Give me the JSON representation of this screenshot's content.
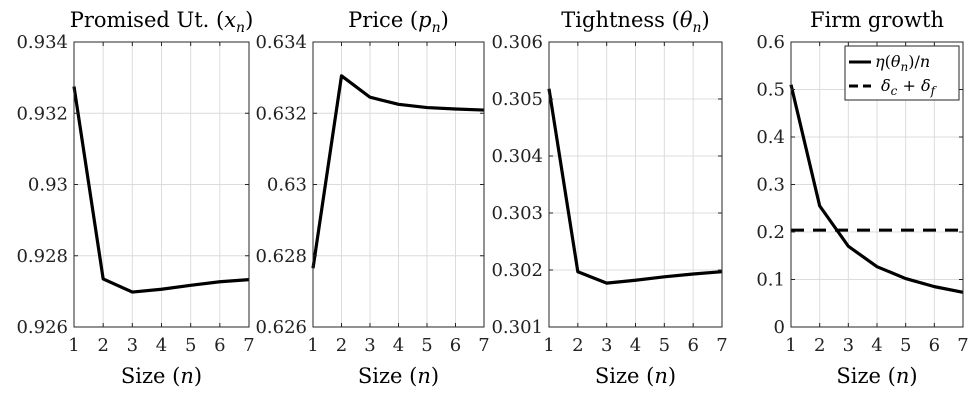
{
  "chart_data": [
    {
      "type": "line",
      "title": "Promised Ut. (x_n)",
      "title_parts": {
        "main": "Promised Ut. (",
        "var": "x",
        "sub": "n",
        "close": ")"
      },
      "xlabel": "Size (n)",
      "xlabel_parts": {
        "main": "Size (",
        "var": "n",
        "close": ")"
      },
      "x": [
        1,
        2,
        3,
        4,
        5,
        6,
        7
      ],
      "xlim": [
        1,
        7
      ],
      "xticks": [
        1,
        2,
        3,
        4,
        5,
        6,
        7
      ],
      "ylim": [
        0.926,
        0.934
      ],
      "yticks": [
        0.926,
        0.928,
        0.93,
        0.932,
        0.934
      ],
      "ytick_labels": [
        "0.926",
        "0.928",
        "0.93",
        "0.932",
        "0.934"
      ],
      "grid": true,
      "series": [
        {
          "values": [
            0.93275,
            0.92735,
            0.92698,
            0.92706,
            0.92717,
            0.92727,
            0.92733
          ],
          "style": "solid"
        }
      ]
    },
    {
      "type": "line",
      "title": "Price (p_n)",
      "title_parts": {
        "main": "Price (",
        "var": "p",
        "sub": "n",
        "close": ")"
      },
      "xlabel": "Size (n)",
      "xlabel_parts": {
        "main": "Size (",
        "var": "n",
        "close": ")"
      },
      "x": [
        1,
        2,
        3,
        4,
        5,
        6,
        7
      ],
      "xlim": [
        1,
        7
      ],
      "xticks": [
        1,
        2,
        3,
        4,
        5,
        6,
        7
      ],
      "ylim": [
        0.626,
        0.634
      ],
      "yticks": [
        0.626,
        0.628,
        0.63,
        0.632,
        0.634
      ],
      "ytick_labels": [
        "0.626",
        "0.628",
        "0.63",
        "0.632",
        "0.634"
      ],
      "grid": true,
      "series": [
        {
          "values": [
            0.62765,
            0.63305,
            0.63245,
            0.63225,
            0.63216,
            0.63212,
            0.63209
          ],
          "style": "solid"
        }
      ]
    },
    {
      "type": "line",
      "title": "Tightness (θ_n)",
      "title_parts": {
        "main": "Tightness (",
        "var": "θ",
        "sub": "n",
        "close": ")"
      },
      "xlabel": "Size (n)",
      "xlabel_parts": {
        "main": "Size (",
        "var": "n",
        "close": ")"
      },
      "x": [
        1,
        2,
        3,
        4,
        5,
        6,
        7
      ],
      "xlim": [
        1,
        7
      ],
      "xticks": [
        1,
        2,
        3,
        4,
        5,
        6,
        7
      ],
      "ylim": [
        0.301,
        0.306
      ],
      "yticks": [
        0.301,
        0.302,
        0.303,
        0.304,
        0.305,
        0.306
      ],
      "ytick_labels": [
        "0.301",
        "0.302",
        "0.303",
        "0.304",
        "0.305",
        "0.306"
      ],
      "grid": true,
      "series": [
        {
          "values": [
            0.30518,
            0.30197,
            0.30177,
            0.30182,
            0.30188,
            0.30193,
            0.30197
          ],
          "style": "solid"
        }
      ]
    },
    {
      "type": "line",
      "title": "Firm growth",
      "title_parts": {
        "main": "Firm growth",
        "var": "",
        "sub": "",
        "close": ""
      },
      "xlabel": "Size (n)",
      "xlabel_parts": {
        "main": "Size (",
        "var": "n",
        "close": ")"
      },
      "x": [
        1,
        2,
        3,
        4,
        5,
        6,
        7
      ],
      "xlim": [
        1,
        7
      ],
      "xticks": [
        1,
        2,
        3,
        4,
        5,
        6,
        7
      ],
      "ylim": [
        0,
        0.6
      ],
      "yticks": [
        0,
        0.1,
        0.2,
        0.3,
        0.4,
        0.5,
        0.6
      ],
      "ytick_labels": [
        "0",
        "0.1",
        "0.2",
        "0.3",
        "0.4",
        "0.5",
        "0.6"
      ],
      "grid": true,
      "legend_position": "top-right",
      "series": [
        {
          "name": "η(θ_n)/n",
          "values": [
            0.51,
            0.255,
            0.17,
            0.127,
            0.102,
            0.085,
            0.073
          ],
          "style": "solid"
        },
        {
          "name": "δ_c + δ_f",
          "values": [
            0.204,
            0.204,
            0.204,
            0.204,
            0.204,
            0.204,
            0.204
          ],
          "style": "dashed"
        }
      ]
    }
  ]
}
